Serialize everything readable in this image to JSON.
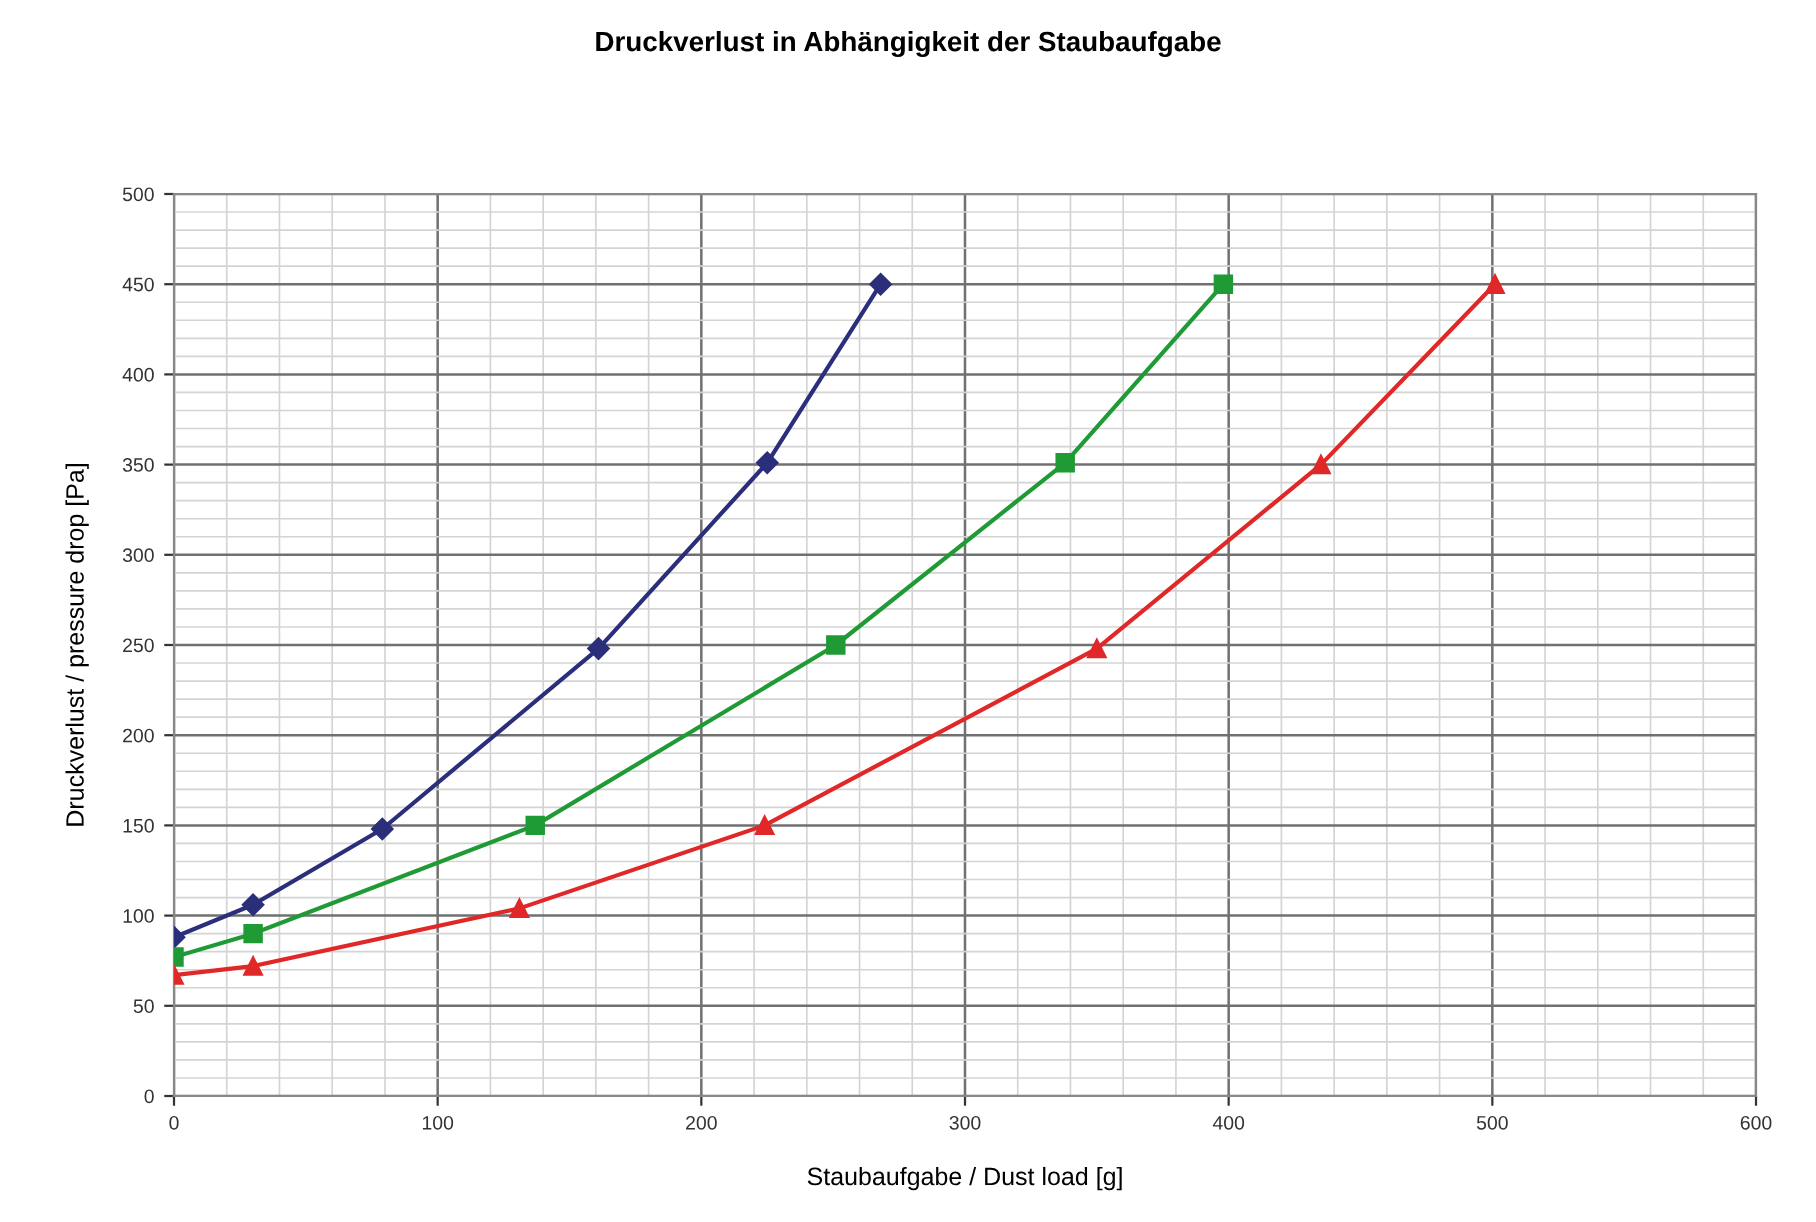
{
  "chart_data": {
    "type": "line",
    "title": "Druckverlust in Abhängigkeit der Staubaufgabe",
    "xlabel": "Staubaufgabe / Dust load [g]",
    "ylabel": "Druckverlust / pressure drop [Pa]",
    "series": [
      {
        "color": "#2b2e7a",
        "marker": "diamond",
        "x": [
          0,
          30,
          79,
          161,
          225,
          268
        ],
        "values": [
          88,
          106,
          148,
          248,
          351,
          450
        ]
      },
      {
        "color": "#1f9a35",
        "marker": "square",
        "x": [
          0,
          30,
          137,
          251,
          338,
          398
        ],
        "values": [
          77,
          90,
          150,
          250,
          351,
          450
        ]
      },
      {
        "color": "#e02828",
        "marker": "triangle",
        "x": [
          0,
          30,
          131,
          224,
          350,
          435,
          501
        ],
        "values": [
          67,
          72,
          104,
          150,
          248,
          350,
          450
        ]
      }
    ],
    "xlim": [
      0,
      600
    ],
    "xticks": [
      0,
      100,
      200,
      300,
      400,
      500,
      600
    ],
    "ylim": [
      0,
      500
    ],
    "yticks": [
      0,
      50,
      100,
      150,
      200,
      250,
      300,
      350,
      400,
      450,
      500
    ],
    "grid": true,
    "line_style": "solid"
  }
}
